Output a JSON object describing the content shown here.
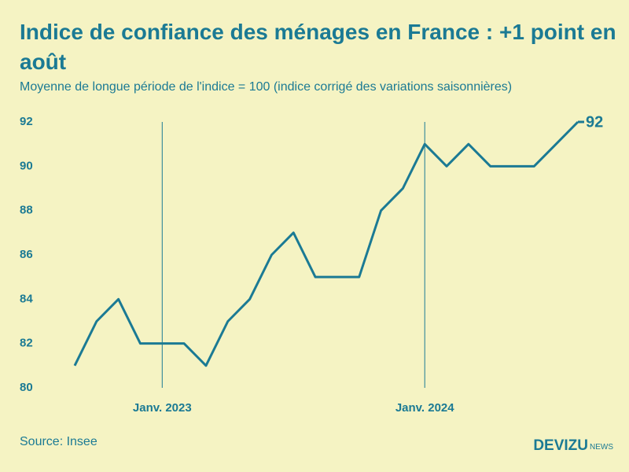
{
  "chart_data": {
    "type": "line",
    "title": "Indice de confiance des ménages en France : +1 point en août",
    "subtitle": "Moyenne de longue période de l'indice = 100 (indice corrigé des variations saisonnières)",
    "categories": [
      null,
      null,
      null,
      null,
      "Janv. 2023",
      null,
      null,
      null,
      null,
      null,
      null,
      null,
      null,
      null,
      null,
      null,
      "Janv. 2024",
      null,
      null,
      null,
      null,
      null,
      null,
      null
    ],
    "series": [
      {
        "name": "Indice de confiance",
        "color": "#1b7a94",
        "values": [
          81,
          83,
          84,
          82,
          82,
          82,
          81,
          83,
          84,
          86,
          87,
          85,
          85,
          85,
          88,
          89,
          91,
          90,
          91,
          90,
          90,
          90,
          91,
          92
        ]
      }
    ],
    "ylim": [
      80,
      92
    ],
    "yticks": [
      80,
      82,
      84,
      86,
      88,
      90,
      92
    ],
    "source": "Source: Insee",
    "logo": "DEVIZU",
    "logo_suffix": "NEWS"
  }
}
